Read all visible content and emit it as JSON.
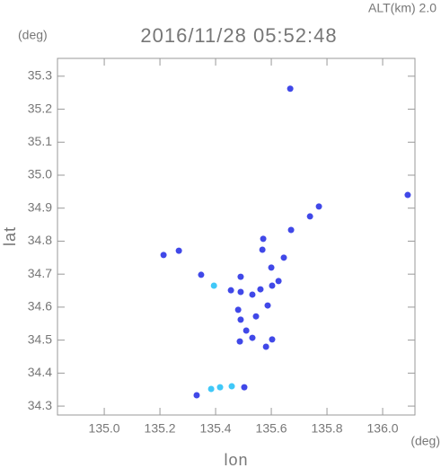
{
  "chart_data": {
    "type": "scatter",
    "title": "2016/11/28 05:52:48",
    "annotation": "ALT(km) 2.0",
    "y_unit": "(deg)",
    "x_unit": "(deg)",
    "x_label": "lon",
    "y_label": "lat",
    "xlim": [
      134.832,
      136.116
    ],
    "ylim": [
      34.273,
      35.354
    ],
    "xticks": [
      {
        "value": 135,
        "label": "135.0"
      },
      135.2,
      135.4,
      135.6,
      135.8,
      {
        "value": 136,
        "label": "136.0"
      }
    ],
    "yticks": [
      34.3,
      34.4,
      34.5,
      34.6,
      34.7,
      34.8,
      34.9,
      {
        "value": 35,
        "label": "35.0"
      },
      35.1,
      35.2,
      35.3
    ],
    "x": [
      135.668,
      136.09,
      135.771,
      135.739,
      135.671,
      135.571,
      135.568,
      135.645,
      135.213,
      135.268,
      135.348,
      135.394,
      135.455,
      135.49,
      135.49,
      135.532,
      135.561,
      135.603,
      135.626,
      135.587,
      135.481,
      135.545,
      135.51,
      135.532,
      135.603,
      135.581,
      135.49,
      135.487,
      135.384,
      135.416,
      135.458,
      135.503,
      135.332,
      135.6
    ],
    "y": [
      35.262,
      34.94,
      34.905,
      34.875,
      34.834,
      34.807,
      34.774,
      34.75,
      34.758,
      34.771,
      34.698,
      34.665,
      34.651,
      34.646,
      34.692,
      34.638,
      34.654,
      34.665,
      34.679,
      34.605,
      34.592,
      34.572,
      34.529,
      34.507,
      34.502,
      34.48,
      34.562,
      34.496,
      34.352,
      34.357,
      34.36,
      34.357,
      34.333,
      34.72
    ],
    "colors": [
      "#4048e8",
      "#4048e8",
      "#4048e8",
      "#4048e8",
      "#4048e8",
      "#4048e8",
      "#4048e8",
      "#4048e8",
      "#4048e8",
      "#4048e8",
      "#4048e8",
      "#40c8f8",
      "#4048e8",
      "#4048e8",
      "#4048e8",
      "#4048e8",
      "#4048e8",
      "#4048e8",
      "#4048e8",
      "#4048e8",
      "#4048e8",
      "#4048e8",
      "#4048e8",
      "#4048e8",
      "#4048e8",
      "#4048e8",
      "#4048e8",
      "#4048e8",
      "#40c8f8",
      "#40c8f8",
      "#40c8f8",
      "#4048e8",
      "#4048e8",
      "#4048e8"
    ]
  }
}
